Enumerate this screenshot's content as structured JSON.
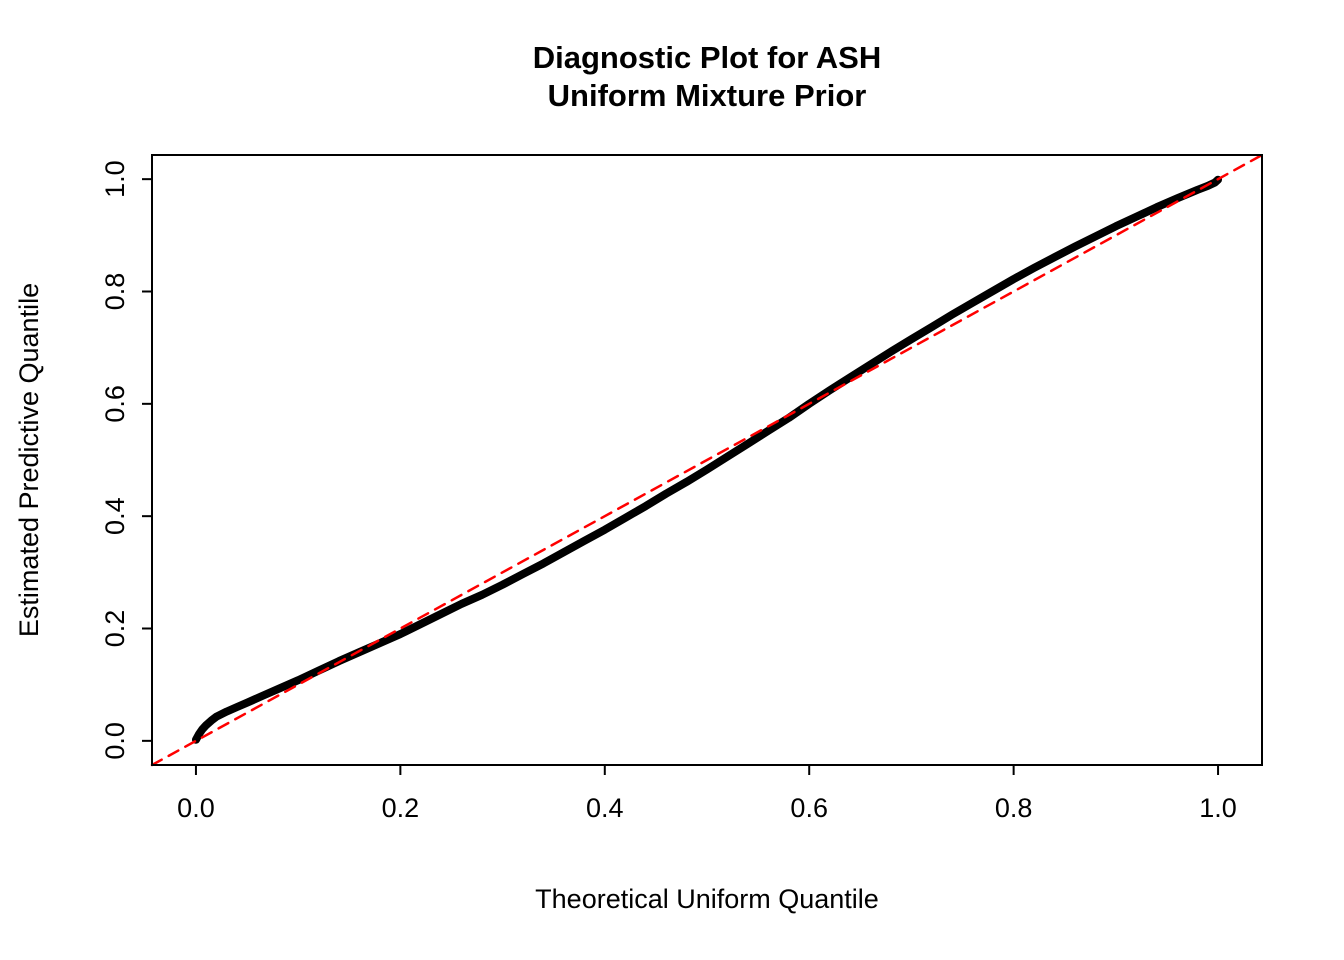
{
  "chart_data": {
    "type": "scatter",
    "title_line1": "Diagnostic Plot for ASH",
    "title_line2": "Uniform Mixture Prior",
    "xlabel": "Theoretical Uniform Quantile",
    "ylabel": "Estimated Predictive Quantile",
    "xlim": [
      -0.043,
      1.043
    ],
    "ylim": [
      -0.043,
      1.043
    ],
    "xticks": [
      0.0,
      0.2,
      0.4,
      0.6,
      0.8,
      1.0
    ],
    "yticks": [
      0.0,
      0.2,
      0.4,
      0.6,
      0.8,
      1.0
    ],
    "grid": false,
    "legend": "none",
    "series": [
      {
        "name": "estimated-quantiles",
        "type": "scatter-line",
        "color": "#000000",
        "points": [
          [
            0.0,
            0.002
          ],
          [
            0.003,
            0.012
          ],
          [
            0.006,
            0.02
          ],
          [
            0.01,
            0.028
          ],
          [
            0.015,
            0.036
          ],
          [
            0.02,
            0.043
          ],
          [
            0.03,
            0.052
          ],
          [
            0.04,
            0.06
          ],
          [
            0.05,
            0.068
          ],
          [
            0.065,
            0.08
          ],
          [
            0.08,
            0.092
          ],
          [
            0.1,
            0.108
          ],
          [
            0.12,
            0.125
          ],
          [
            0.14,
            0.142
          ],
          [
            0.16,
            0.158
          ],
          [
            0.18,
            0.174
          ],
          [
            0.2,
            0.19
          ],
          [
            0.22,
            0.208
          ],
          [
            0.24,
            0.226
          ],
          [
            0.26,
            0.244
          ],
          [
            0.28,
            0.26
          ],
          [
            0.3,
            0.278
          ],
          [
            0.32,
            0.297
          ],
          [
            0.34,
            0.316
          ],
          [
            0.36,
            0.336
          ],
          [
            0.38,
            0.356
          ],
          [
            0.4,
            0.376
          ],
          [
            0.42,
            0.397
          ],
          [
            0.44,
            0.418
          ],
          [
            0.46,
            0.44
          ],
          [
            0.48,
            0.461
          ],
          [
            0.5,
            0.483
          ],
          [
            0.52,
            0.506
          ],
          [
            0.54,
            0.529
          ],
          [
            0.56,
            0.552
          ],
          [
            0.58,
            0.575
          ],
          [
            0.6,
            0.6
          ],
          [
            0.62,
            0.624
          ],
          [
            0.64,
            0.647
          ],
          [
            0.66,
            0.67
          ],
          [
            0.68,
            0.693
          ],
          [
            0.7,
            0.715
          ],
          [
            0.72,
            0.737
          ],
          [
            0.74,
            0.759
          ],
          [
            0.76,
            0.78
          ],
          [
            0.78,
            0.801
          ],
          [
            0.8,
            0.822
          ],
          [
            0.82,
            0.842
          ],
          [
            0.84,
            0.861
          ],
          [
            0.86,
            0.88
          ],
          [
            0.88,
            0.898
          ],
          [
            0.9,
            0.916
          ],
          [
            0.92,
            0.933
          ],
          [
            0.94,
            0.95
          ],
          [
            0.96,
            0.966
          ],
          [
            0.98,
            0.981
          ],
          [
            0.99,
            0.988
          ],
          [
            0.997,
            0.994
          ],
          [
            1.0,
            0.999
          ]
        ]
      },
      {
        "name": "reference-identity-line",
        "type": "line",
        "style": "dashed",
        "color": "#FF0000",
        "points": [
          [
            -0.043,
            -0.043
          ],
          [
            1.043,
            1.043
          ]
        ]
      }
    ]
  },
  "colors": {
    "background": "#FFFFFF",
    "axis": "#000000",
    "qq_curve": "#000000",
    "reference_line": "#FF0000"
  }
}
